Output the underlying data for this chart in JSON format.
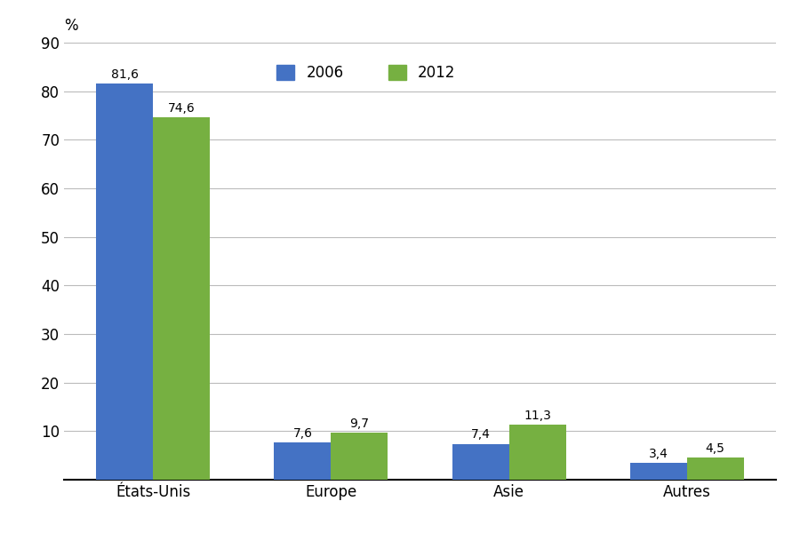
{
  "categories": [
    "États-Unis",
    "Europe",
    "Asie",
    "Autres"
  ],
  "values_2006": [
    81.6,
    7.6,
    7.4,
    3.4
  ],
  "values_2012": [
    74.6,
    9.7,
    11.3,
    4.5
  ],
  "color_2006": "#4472C4",
  "color_2012": "#76B041",
  "ylabel": "%",
  "ylim": [
    0,
    90
  ],
  "yticks": [
    0,
    10,
    20,
    30,
    40,
    50,
    60,
    70,
    80,
    90
  ],
  "legend_2006": "2006",
  "legend_2012": "2012",
  "bar_width": 0.32,
  "background_color": "#ffffff",
  "grid_color": "#bbbbbb",
  "label_fontsize": 10,
  "tick_fontsize": 12,
  "ylabel_fontsize": 12
}
